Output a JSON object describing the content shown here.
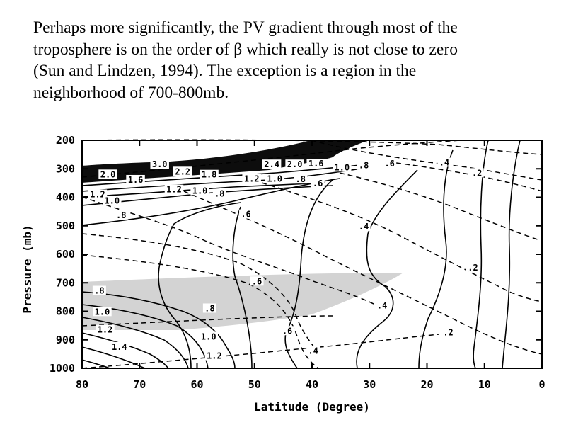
{
  "caption": {
    "lines": [
      "Perhaps more significantly, the PV gradient through most of the",
      "troposphere is on the order of β which really is not close to zero",
      "(Sun and Lindzen, 1994).  The exception is a region in the",
      "neighborhood of 700-800mb."
    ]
  },
  "chart_data": {
    "type": "contour",
    "title": "",
    "xlabel": "Latitude (Degree)",
    "ylabel": "Pressure (mb)",
    "xlim": [
      80,
      0
    ],
    "ylim": [
      1000,
      200
    ],
    "x_ticks": [
      "80",
      "70",
      "60",
      "50",
      "40",
      "30",
      "20",
      "10",
      "0"
    ],
    "y_ticks": [
      "200",
      "300",
      "400",
      "500",
      "600",
      "700",
      "800",
      "900",
      "1000"
    ],
    "shaded_region": {
      "description_value_range_mb": [
        660,
        880
      ],
      "latitude_range": [
        80,
        24
      ]
    },
    "contour_labels": [
      {
        "text": "3.0",
        "lat": 66.5,
        "p": 290
      },
      {
        "text": "2.0",
        "lat": 75.5,
        "p": 325
      },
      {
        "text": "1.6",
        "lat": 70.7,
        "p": 344
      },
      {
        "text": "2.2",
        "lat": 62.5,
        "p": 315
      },
      {
        "text": "1.8",
        "lat": 57.9,
        "p": 326
      },
      {
        "text": "1.2",
        "lat": 77.3,
        "p": 395
      },
      {
        "text": "1.0",
        "lat": 74.8,
        "p": 418
      },
      {
        "text": "1.2",
        "lat": 64.0,
        "p": 378
      },
      {
        "text": "1.0",
        "lat": 59.5,
        "p": 382
      },
      {
        "text": ".8",
        "lat": 56.1,
        "p": 393
      },
      {
        "text": ".8",
        "lat": 73.2,
        "p": 468
      },
      {
        "text": "1.2",
        "lat": 50.5,
        "p": 340
      },
      {
        "text": "1.0",
        "lat": 46.5,
        "p": 340
      },
      {
        "text": ".8",
        "lat": 42.0,
        "p": 342
      },
      {
        "text": ".6",
        "lat": 39.0,
        "p": 357
      },
      {
        "text": "2.4",
        "lat": 47.0,
        "p": 290
      },
      {
        "text": "2.0",
        "lat": 43.0,
        "p": 290
      },
      {
        "text": "1.6",
        "lat": 39.3,
        "p": 287
      },
      {
        "text": "1.0",
        "lat": 34.8,
        "p": 300
      },
      {
        "text": ".8",
        "lat": 31.0,
        "p": 293
      },
      {
        "text": ".6",
        "lat": 26.5,
        "p": 287
      },
      {
        "text": ".4",
        "lat": 17.0,
        "p": 283
      },
      {
        "text": ".2",
        "lat": 11.3,
        "p": 320
      },
      {
        "text": ".6",
        "lat": 51.5,
        "p": 465
      },
      {
        "text": ".4",
        "lat": 31.0,
        "p": 508
      },
      {
        "text": ".2",
        "lat": 12.0,
        "p": 652
      },
      {
        "text": ".8",
        "lat": 77.0,
        "p": 733
      },
      {
        "text": "1.0",
        "lat": 76.5,
        "p": 807
      },
      {
        "text": "1.2",
        "lat": 76.0,
        "p": 870
      },
      {
        "text": "1.4",
        "lat": 73.5,
        "p": 930
      },
      {
        "text": ".8",
        "lat": 57.8,
        "p": 795
      },
      {
        "text": ".6",
        "lat": 49.6,
        "p": 700
      },
      {
        "text": "1.0",
        "lat": 58.0,
        "p": 894
      },
      {
        "text": "1.2",
        "lat": 57.0,
        "p": 962
      },
      {
        "text": ".6",
        "lat": 44.3,
        "p": 874
      },
      {
        "text": ".4",
        "lat": 39.8,
        "p": 944
      },
      {
        "text": ".4",
        "lat": 27.8,
        "p": 785
      },
      {
        "text": ".2",
        "lat": 16.3,
        "p": 880
      }
    ]
  }
}
